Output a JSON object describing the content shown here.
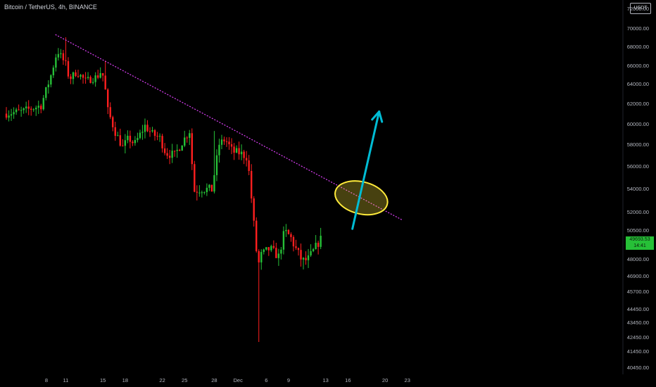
{
  "header": {
    "title": "Bitcoin / TetherUS, 4h, BINANCE",
    "currency": "USDT"
  },
  "price_badge": {
    "price": "49693.53",
    "countdown": "14:41"
  },
  "colors": {
    "up": "#26c037",
    "down": "#ff1f1f",
    "trendline": "#e040fb",
    "ellipse": "#ffeb3b",
    "arrow": "#00bcd4",
    "axis_text": "#b2b5be"
  },
  "chart_data": {
    "type": "candlestick",
    "y_ticks": [
      "72000.00",
      "70000.00",
      "68000.00",
      "66000.00",
      "64000.00",
      "62000.00",
      "60000.00",
      "58000.00",
      "56000.00",
      "54000.00",
      "52000.00",
      "50500.00",
      "48000.00",
      "46900.00",
      "45700.00",
      "44450.00",
      "43450.00",
      "42450.00",
      "41450.00",
      "40450.00"
    ],
    "x_ticks": [
      "8",
      "11",
      "15",
      "18",
      "22",
      "25",
      "28",
      "Dec",
      "6",
      "9",
      "13",
      "16",
      "20",
      "23"
    ],
    "x_tick_pos": [
      0.0,
      1.3,
      3.8,
      5.3,
      7.8,
      9.3,
      11.3,
      12.9,
      14.8,
      16.3,
      18.8,
      20.3,
      22.8,
      24.3
    ],
    "series_anchors": [
      [
        -2.7,
        61000
      ],
      [
        -1.5,
        61200
      ],
      [
        -0.2,
        61800
      ],
      [
        0.4,
        64500
      ],
      [
        0.9,
        67600
      ],
      [
        1.2,
        66800
      ],
      [
        1.5,
        66000
      ],
      [
        1.7,
        64500
      ],
      [
        2.2,
        65300
      ],
      [
        2.8,
        64300
      ],
      [
        3.3,
        64600
      ],
      [
        3.6,
        64800
      ],
      [
        3.9,
        65500
      ],
      [
        4.1,
        63700
      ],
      [
        4.3,
        61300
      ],
      [
        4.8,
        59200
      ],
      [
        5.3,
        57700
      ],
      [
        5.7,
        58600
      ],
      [
        6.1,
        58000
      ],
      [
        6.8,
        59800
      ],
      [
        7.3,
        59000
      ],
      [
        7.8,
        58600
      ],
      [
        8.2,
        57200
      ],
      [
        8.8,
        57000
      ],
      [
        9.3,
        58200
      ],
      [
        9.8,
        59300
      ],
      [
        10.1,
        53800
      ],
      [
        10.6,
        54000
      ],
      [
        11.3,
        53900
      ],
      [
        11.8,
        58000
      ],
      [
        12.2,
        58500
      ],
      [
        12.7,
        57300
      ],
      [
        13.2,
        57200
      ],
      [
        13.7,
        56800
      ],
      [
        14.1,
        51400
      ],
      [
        14.4,
        47400
      ],
      [
        14.6,
        48300
      ],
      [
        15.2,
        48900
      ],
      [
        15.8,
        48200
      ],
      [
        16.2,
        50400
      ],
      [
        16.6,
        49900
      ],
      [
        16.9,
        49000
      ],
      [
        17.4,
        47800
      ],
      [
        17.8,
        48000
      ],
      [
        18.2,
        48800
      ],
      [
        18.6,
        49700
      ]
    ],
    "wick_extremes": [
      [
        1.3,
        69000
      ],
      [
        3.95,
        66500
      ],
      [
        11.3,
        59300
      ],
      [
        14.35,
        42100
      ]
    ],
    "trendline": {
      "from": [
        0.6,
        69300
      ],
      "to": [
        24.0,
        51300
      ]
    },
    "ellipse": {
      "center": [
        21.2,
        53200
      ],
      "rx_days": 1.8,
      "ry_value": 1400
    },
    "arrow": {
      "from": [
        20.6,
        50600
      ],
      "to": [
        22.4,
        61200
      ]
    }
  }
}
